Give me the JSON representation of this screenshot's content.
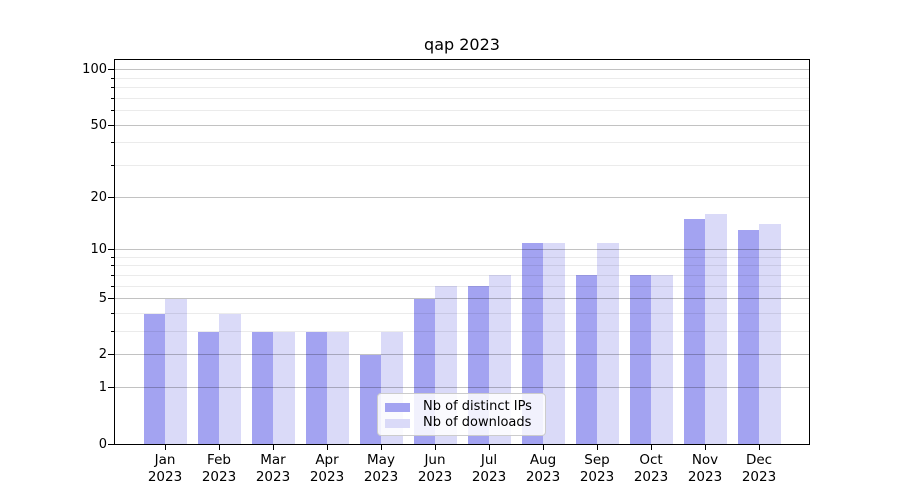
{
  "chart_data": {
    "type": "bar",
    "title": "qap 2023",
    "categories": [
      "Jan",
      "Feb",
      "Mar",
      "Apr",
      "May",
      "Jun",
      "Jul",
      "Aug",
      "Sep",
      "Oct",
      "Nov",
      "Dec"
    ],
    "category_year_label": "2023",
    "series": [
      {
        "name": "Nb of distinct IPs",
        "color": "#a3a3f1",
        "values": [
          4,
          3,
          3,
          3,
          2,
          5,
          6,
          11,
          7,
          7,
          15,
          13
        ]
      },
      {
        "name": "Nb of downloads",
        "color": "#dadaf8",
        "values": [
          5,
          4,
          3,
          3,
          3,
          6,
          7,
          11,
          11,
          7,
          16,
          14
        ]
      }
    ],
    "xlabel": "",
    "ylabel": "",
    "yscale": "log1p",
    "ylim": [
      0,
      113
    ],
    "y_major_ticks": [
      0,
      1,
      2,
      5,
      10,
      20,
      50,
      100
    ],
    "y_minor_ticks": [
      3,
      4,
      6,
      7,
      8,
      9,
      30,
      40,
      60,
      70,
      80,
      90
    ],
    "grid": "horizontal",
    "legend_position": "inside-bottom-center"
  },
  "colors": {
    "axes": "#000000",
    "grid_major": "#c6c6c6",
    "grid_minor": "#ebebeb",
    "background": "#ffffff"
  }
}
